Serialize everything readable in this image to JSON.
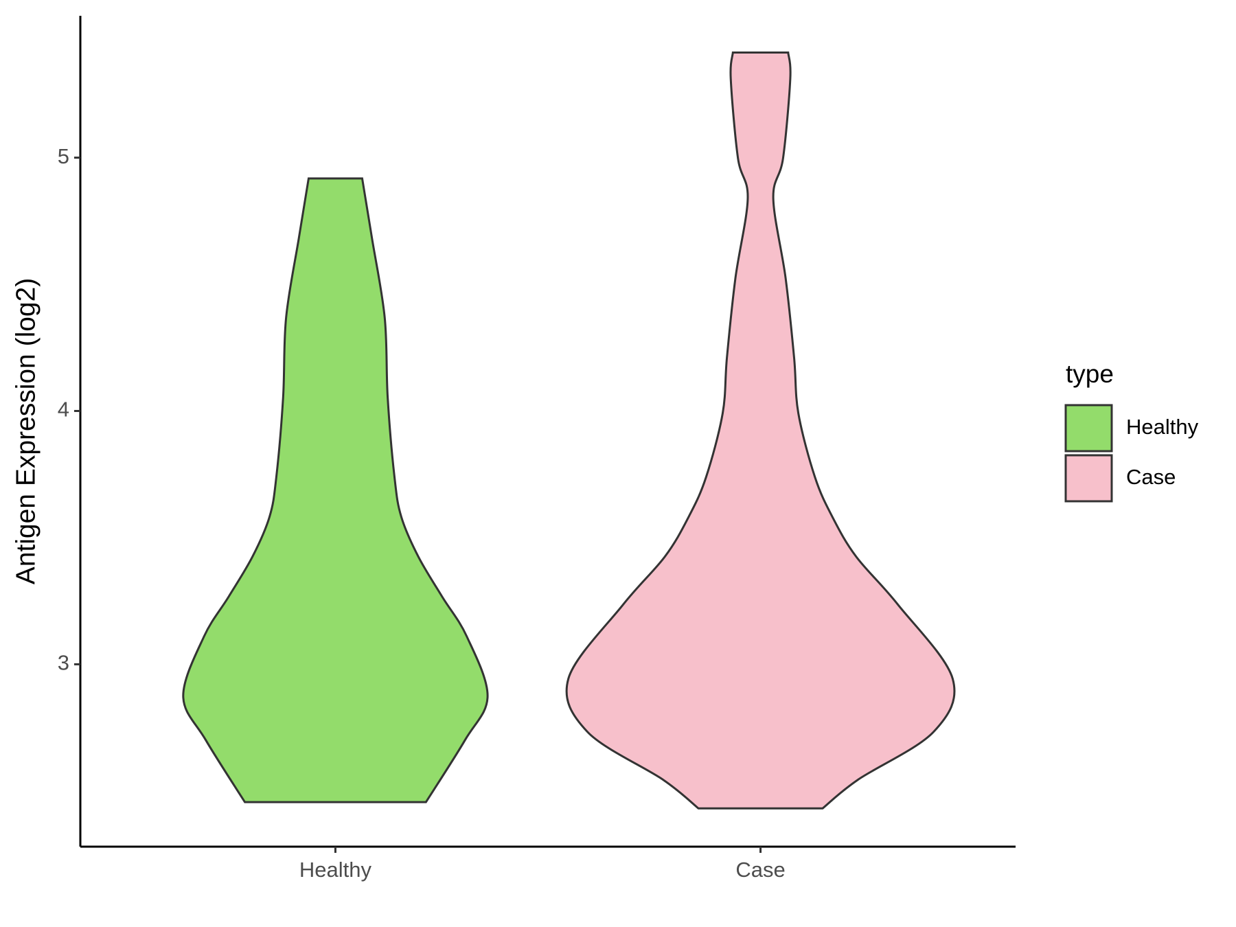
{
  "chart_data": {
    "type": "violin",
    "y_label": "Antigen Expression (log2)",
    "categories": [
      "Healthy",
      "Case"
    ],
    "xlim": [
      0.4,
      2.6
    ],
    "ylim": [
      2.28,
      5.56
    ],
    "yticks": [
      3,
      4,
      5
    ],
    "legend_title": "type",
    "legend": "right",
    "series": [
      {
        "name": "Healthy",
        "color": "#93dc6b",
        "y": [
          4.918,
          4.682,
          4.368,
          4.053,
          3.739,
          3.582,
          3.425,
          3.267,
          3.11,
          2.874,
          2.701,
          2.456
        ],
        "half_widths": [
          0.063,
          0.086,
          0.116,
          0.123,
          0.139,
          0.155,
          0.195,
          0.251,
          0.309,
          0.358,
          0.305,
          0.213
        ]
      },
      {
        "name": "Case",
        "color": "#f7c0cb",
        "y": [
          5.415,
          5.311,
          4.997,
          4.84,
          4.525,
          4.211,
          3.991,
          3.739,
          3.582,
          3.425,
          3.236,
          2.943,
          2.733,
          2.544,
          2.431
        ],
        "half_widths": [
          0.065,
          0.07,
          0.053,
          0.03,
          0.059,
          0.079,
          0.089,
          0.128,
          0.169,
          0.225,
          0.323,
          0.452,
          0.407,
          0.229,
          0.146
        ]
      }
    ]
  }
}
